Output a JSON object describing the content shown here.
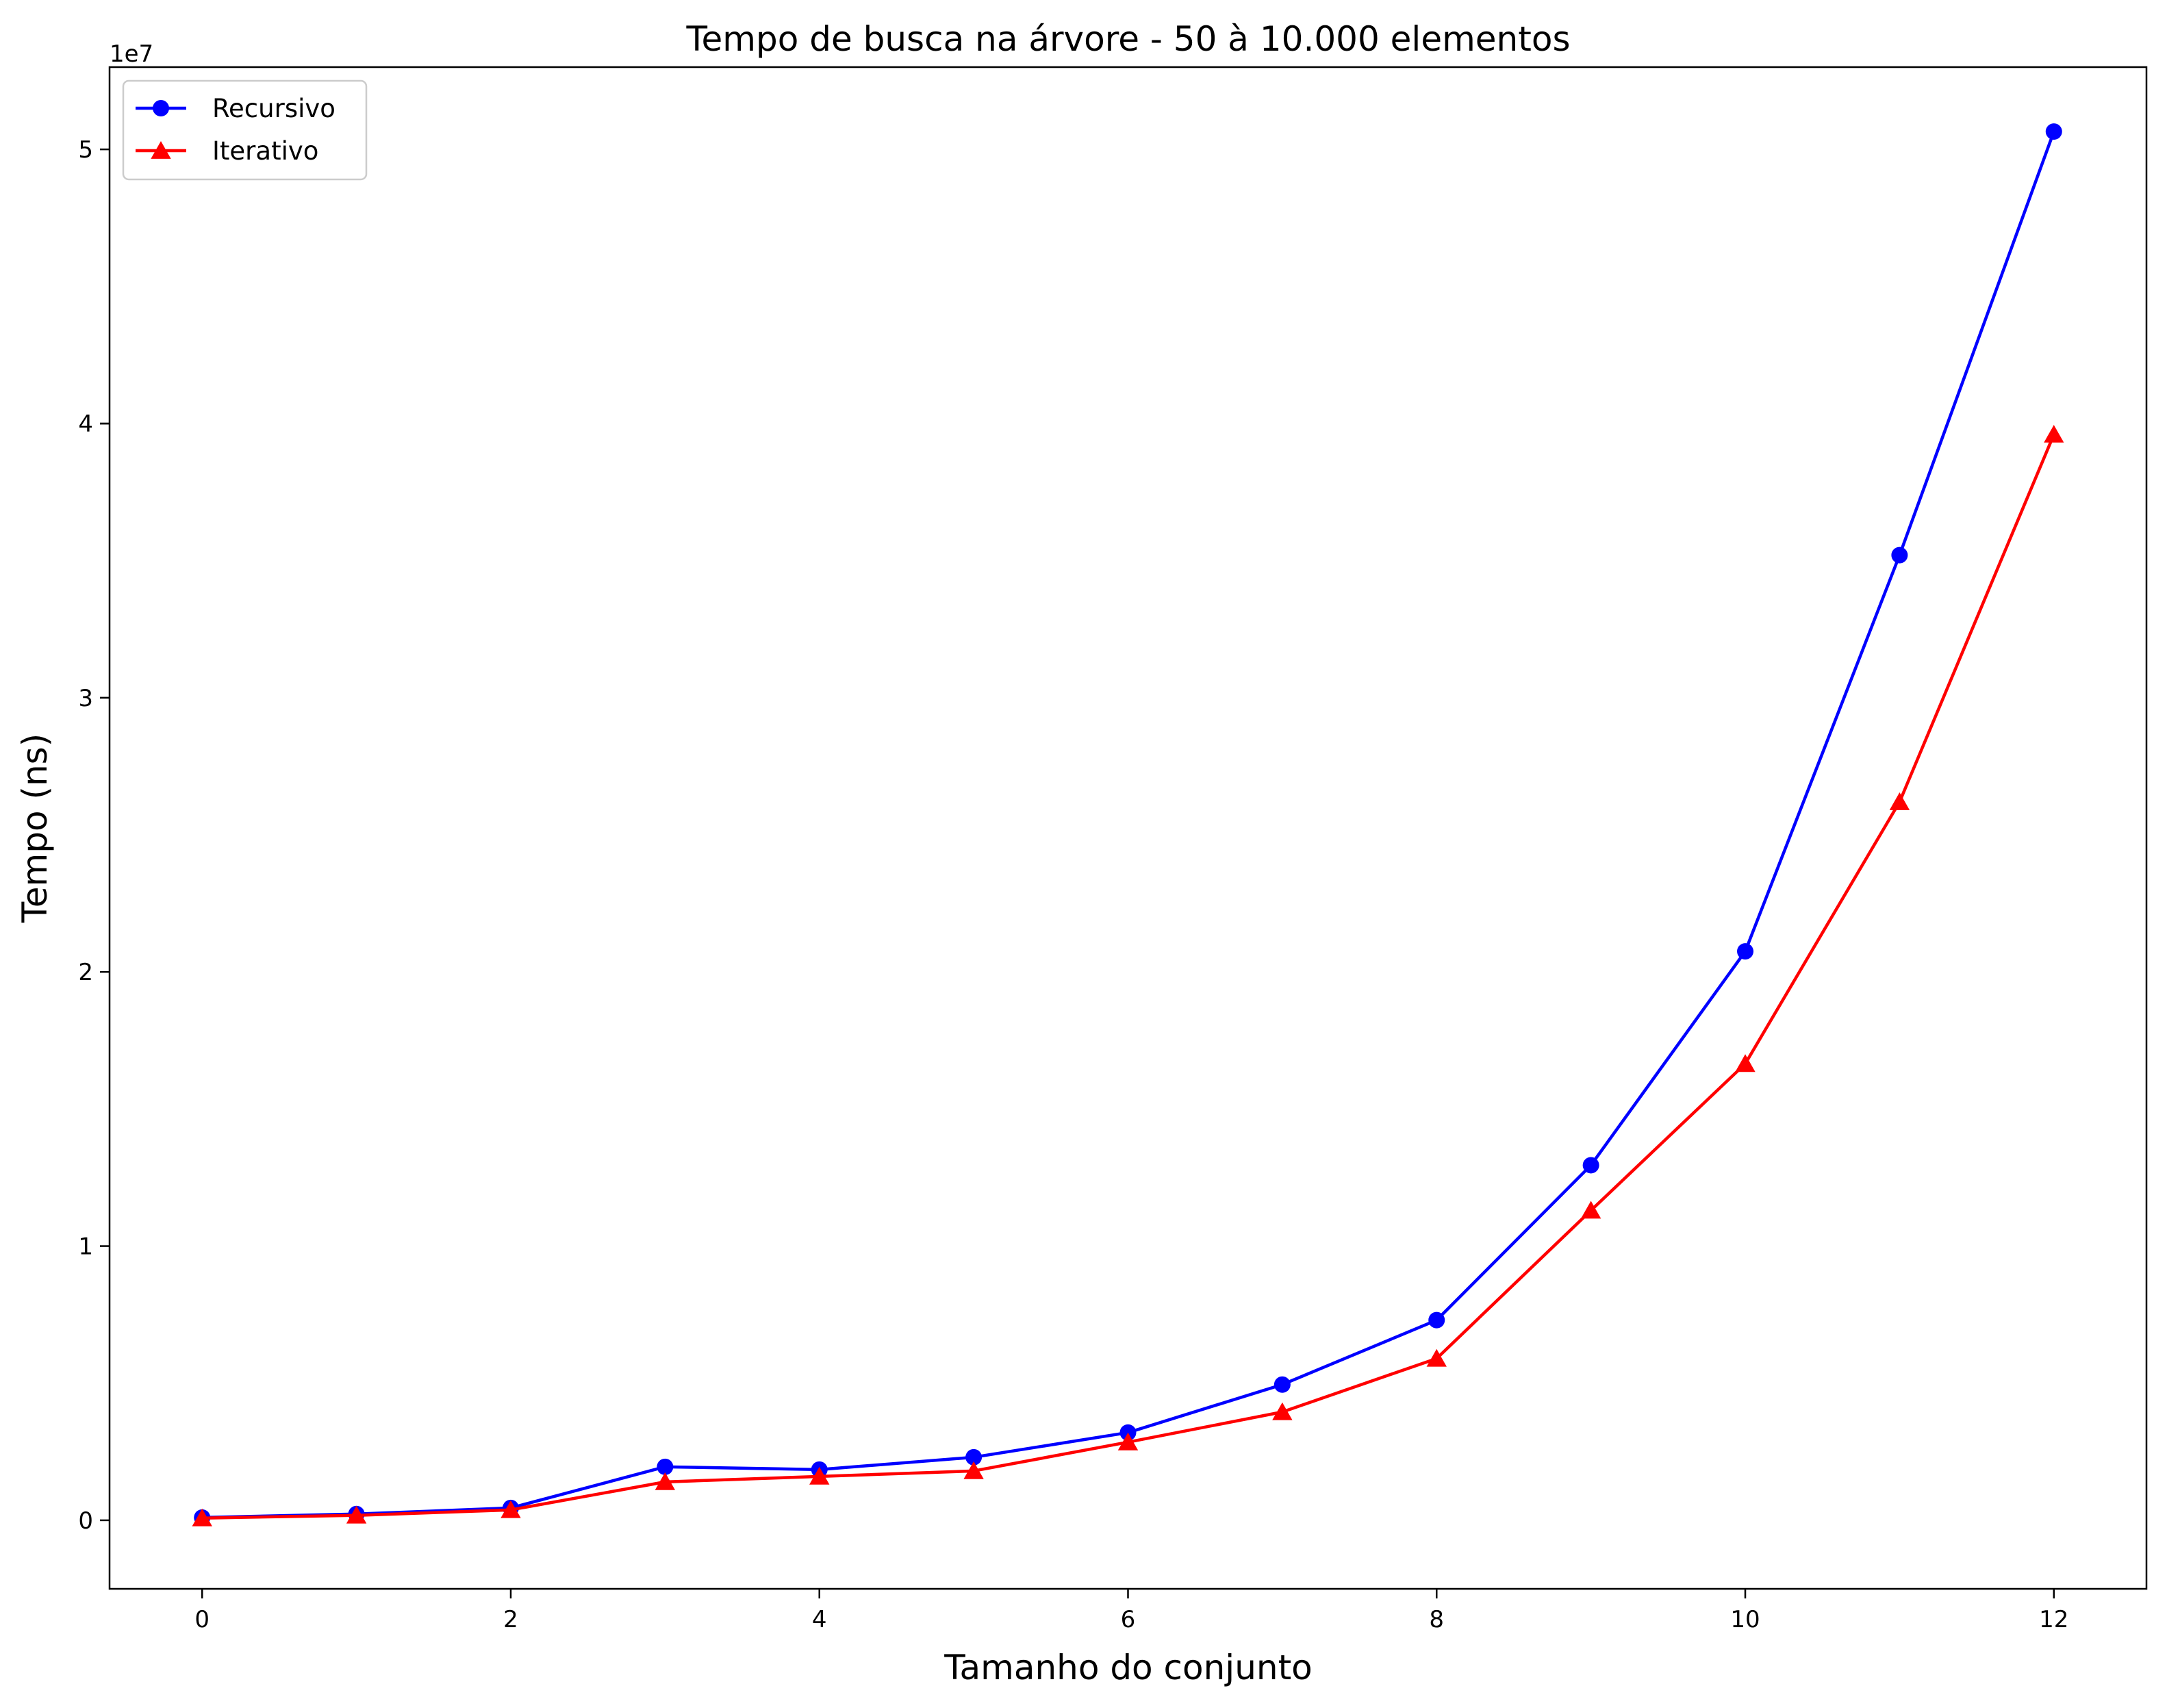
{
  "chart_data": {
    "type": "line",
    "title": "Tempo de busca na árvore - 50 à 10.000 elementos",
    "xlabel": "Tamanho do conjunto",
    "ylabel": "Tempo (ns)",
    "y_offset_label": "1e7",
    "xlim": [
      -0.6,
      12.6
    ],
    "ylim": [
      -2500000,
      53000000
    ],
    "x_ticks": [
      0,
      2,
      4,
      6,
      8,
      10,
      12
    ],
    "x_tick_labels": [
      "0",
      "2",
      "4",
      "6",
      "8",
      "10",
      "12"
    ],
    "y_ticks": [
      0,
      10000000,
      20000000,
      30000000,
      40000000,
      50000000
    ],
    "y_tick_labels": [
      "0",
      "1",
      "2",
      "3",
      "4",
      "5"
    ],
    "grid": false,
    "legend_position": "top-left",
    "x": [
      0,
      1,
      2,
      3,
      4,
      5,
      6,
      7,
      8,
      9,
      10,
      11,
      12
    ],
    "series": [
      {
        "name": "Recursivo",
        "color": "#0000ff",
        "marker": "circle",
        "values": [
          100000,
          230000,
          450000,
          1950000,
          1850000,
          2300000,
          3200000,
          4950000,
          7300000,
          12950000,
          20750000,
          35200000,
          50650000
        ]
      },
      {
        "name": "Iterativo",
        "color": "#ff0000",
        "marker": "triangle",
        "values": [
          80000,
          180000,
          380000,
          1400000,
          1600000,
          1800000,
          2850000,
          3950000,
          5900000,
          11300000,
          16650000,
          26200000,
          39600000
        ]
      }
    ]
  }
}
